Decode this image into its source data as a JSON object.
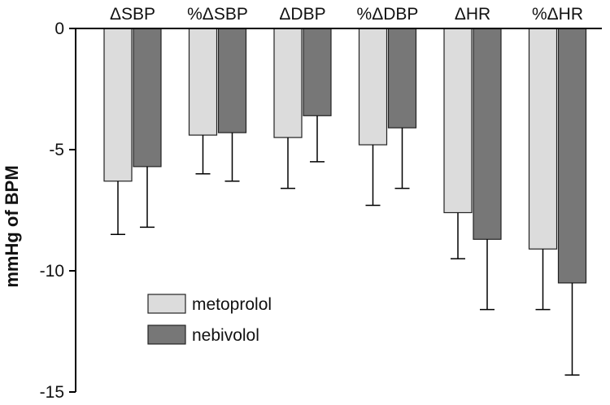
{
  "chart_data": {
    "type": "bar",
    "categories": [
      "ΔSBP",
      "%ΔSBP",
      "ΔDBP",
      "%ΔDBP",
      "ΔHR",
      "%ΔHR"
    ],
    "series": [
      {
        "name": "metoprolol",
        "color": "#dcdcdc",
        "values": [
          -6.3,
          -4.4,
          -4.5,
          -4.8,
          -7.6,
          -9.1
        ],
        "errors": [
          2.2,
          1.6,
          2.1,
          2.5,
          1.9,
          2.5
        ]
      },
      {
        "name": "nebivolol",
        "color": "#777777",
        "values": [
          -5.7,
          -4.3,
          -3.6,
          -4.1,
          -8.7,
          -10.5
        ],
        "errors": [
          2.5,
          2.0,
          1.9,
          2.5,
          2.9,
          3.8
        ]
      }
    ],
    "ylabel": "mmHg of BPM",
    "ylim": [
      -15,
      0
    ],
    "yticks": [
      "0",
      "-5",
      "-10",
      "-15"
    ],
    "ytick_values": [
      0,
      -5,
      -10,
      -15
    ],
    "legend_position": "lower-left",
    "grid": false
  }
}
